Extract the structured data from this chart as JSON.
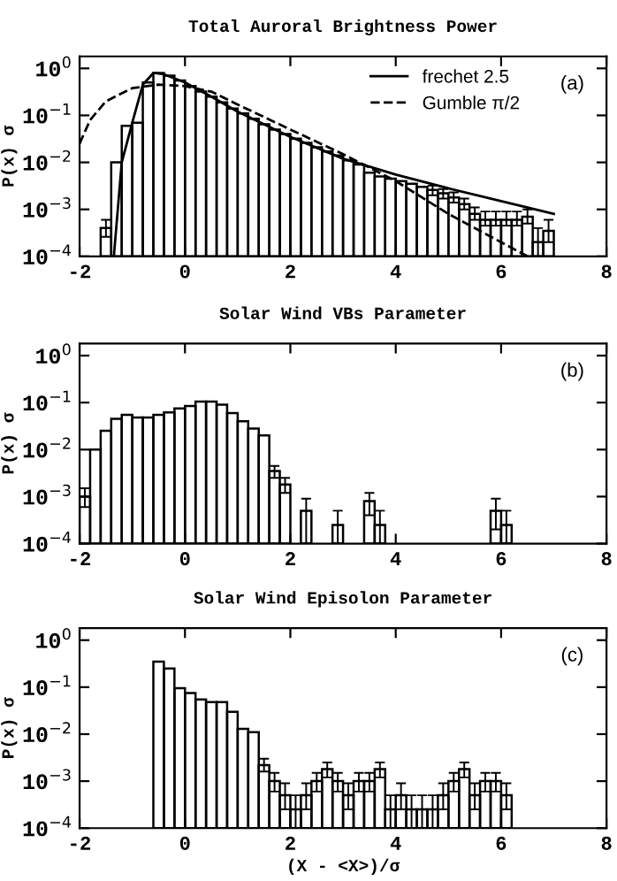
{
  "chart_data": [
    {
      "type": "histogram",
      "title": "Total Auroral Brightness Power",
      "ylabel": "P(x) σ",
      "annotations": [
        "(a)"
      ],
      "bins": [
        -1.6,
        -1.4,
        -1.2,
        -1.0,
        -0.8,
        -0.6,
        -0.4,
        -0.2,
        0.0,
        0.2,
        0.4,
        0.6,
        0.8,
        1.0,
        1.2,
        1.4,
        1.6,
        1.8,
        2.0,
        2.2,
        2.4,
        2.6,
        2.8,
        3.0,
        3.2,
        3.4,
        3.6,
        3.8,
        4.0,
        4.2,
        4.4,
        4.6,
        4.8,
        5.0,
        5.2,
        5.4,
        5.6,
        5.8,
        6.0,
        6.2,
        6.4,
        6.6,
        6.8,
        7.0
      ],
      "values": [
        0.0004,
        0.01,
        0.06,
        0.07,
        0.5,
        0.8,
        0.7,
        0.55,
        0.42,
        0.32,
        0.25,
        0.19,
        0.14,
        0.11,
        0.085,
        0.065,
        0.05,
        0.04,
        0.032,
        0.026,
        0.021,
        0.017,
        0.014,
        0.011,
        0.009,
        0.006,
        0.005,
        0.0045,
        0.004,
        0.0035,
        0.003,
        0.0026,
        0.0022,
        0.0018,
        0.0013,
        0.0008,
        0.0006,
        0.0006,
        0.0006,
        0.0006,
        0.0007,
        0.0002,
        0.00035
      ],
      "errors": [
        [
          0.00026,
          0.0006
        ],
        null,
        null,
        null,
        null,
        null,
        null,
        null,
        null,
        null,
        null,
        null,
        null,
        null,
        null,
        null,
        null,
        null,
        null,
        null,
        null,
        null,
        null,
        null,
        null,
        null,
        null,
        null,
        null,
        null,
        null,
        [
          0.002,
          0.0032
        ],
        [
          0.0017,
          0.0027
        ],
        [
          0.0014,
          0.0023
        ],
        [
          0.001,
          0.0017
        ],
        [
          0.0006,
          0.0011
        ],
        [
          0.00045,
          0.0009
        ],
        [
          0.00045,
          0.0009
        ],
        [
          0.00045,
          0.0009
        ],
        [
          0.00045,
          0.0009
        ],
        [
          0.0005,
          0.001
        ],
        [
          0.0001,
          0.0004
        ],
        [
          0.0002,
          0.0006
        ]
      ],
      "series": [
        {
          "name": "frechet 2.5",
          "type": "line",
          "line_style": "solid",
          "color": "#000000",
          "x": [
            -1.35,
            -1.2,
            -1.0,
            -0.8,
            -0.6,
            -0.4,
            0,
            0.5,
            1,
            2,
            3,
            4,
            5,
            6,
            7
          ],
          "values": [
            0.0001,
            0.01,
            0.07,
            0.45,
            0.8,
            0.75,
            0.5,
            0.25,
            0.12,
            0.035,
            0.012,
            0.0055,
            0.0028,
            0.0015,
            0.0008
          ]
        },
        {
          "name": "Gumble π/2",
          "type": "line",
          "line_style": "dashed",
          "color": "#000000",
          "x": [
            -2,
            -1.8,
            -1.5,
            -1.0,
            -0.5,
            0,
            0.5,
            1,
            2,
            3,
            4,
            5,
            6,
            6.5
          ],
          "values": [
            0.025,
            0.08,
            0.2,
            0.38,
            0.45,
            0.42,
            0.32,
            0.17,
            0.05,
            0.015,
            0.004,
            0.0008,
            0.0002,
            0.0001
          ]
        }
      ],
      "legend": "top right",
      "xlim": [
        -2,
        8
      ],
      "xticks": [
        -2,
        0,
        2,
        4,
        6,
        8
      ],
      "log": true,
      "ylim": [
        0.0001,
        1.8
      ],
      "yticks": [
        {
          "value": 0.0001,
          "label": "10$^{−4}$"
        },
        {
          "value": 0.001,
          "label": "10$^{−3}$"
        },
        {
          "value": 0.01,
          "label": "10$^{−2}$"
        },
        {
          "value": 0.1,
          "label": "10$^{−1}$"
        },
        {
          "value": 1,
          "label": "10$^{0}$"
        }
      ],
      "grid": false
    },
    {
      "type": "histogram",
      "title": "Solar Wind VBs Parameter",
      "ylabel": "P(x) σ",
      "annotations": [
        "(b)"
      ],
      "bins": [
        -2.0,
        -1.8,
        -1.6,
        -1.4,
        -1.2,
        -1.0,
        -0.8,
        -0.6,
        -0.4,
        -0.2,
        0.0,
        0.2,
        0.4,
        0.6,
        0.8,
        1.0,
        1.2,
        1.4,
        1.6,
        1.8,
        2.0,
        2.2,
        2.4,
        2.6,
        2.8,
        3.0,
        3.2,
        3.4,
        3.6,
        3.8,
        4.0,
        4.2,
        4.4,
        4.6,
        4.8,
        5.0,
        5.2,
        5.4,
        5.6,
        5.8,
        6.0,
        6.2
      ],
      "values": [
        0.001,
        0.01,
        0.025,
        0.045,
        0.055,
        0.048,
        0.048,
        0.055,
        0.062,
        0.075,
        0.085,
        0.105,
        0.105,
        0.09,
        0.06,
        0.04,
        0.028,
        0.02,
        0.0035,
        0.0018,
        null,
        0.0005,
        null,
        null,
        0.00025,
        null,
        null,
        0.0008,
        0.00025,
        null,
        null,
        null,
        null,
        null,
        null,
        null,
        null,
        null,
        null,
        0.0005,
        0.00025
      ],
      "errors": [
        [
          0.0006,
          0.0015
        ],
        null,
        null,
        null,
        null,
        null,
        null,
        null,
        null,
        null,
        null,
        null,
        null,
        null,
        null,
        null,
        null,
        null,
        [
          0.0025,
          0.0045
        ],
        [
          0.0012,
          0.0025
        ],
        null,
        [
          0.0001,
          0.0009
        ],
        null,
        null,
        [
          0.0001,
          0.0005
        ],
        null,
        null,
        [
          0.0004,
          0.0012
        ],
        [
          0.0001,
          0.0005
        ],
        null,
        null,
        null,
        null,
        null,
        null,
        null,
        null,
        null,
        null,
        [
          0.0002,
          0.0009
        ],
        [
          0.0001,
          0.0005
        ]
      ],
      "xlim": [
        -2,
        8
      ],
      "xticks": [
        -2,
        0,
        2,
        4,
        6,
        8
      ],
      "log": true,
      "ylim": [
        0.0001,
        1.8
      ],
      "yticks": [
        {
          "value": 0.0001,
          "label": "10$^{−4}$"
        },
        {
          "value": 0.001,
          "label": "10$^{−3}$"
        },
        {
          "value": 0.01,
          "label": "10$^{−2}$"
        },
        {
          "value": 0.1,
          "label": "10$^{−1}$"
        },
        {
          "value": 1,
          "label": "10$^{0}$"
        }
      ],
      "grid": false
    },
    {
      "type": "histogram",
      "title": "Solar Wind Episolon Parameter",
      "xlabel": "(X - <X>)/σ",
      "ylabel": "P(x) σ",
      "annotations": [
        "(c)"
      ],
      "bins": [
        -0.6,
        -0.4,
        -0.2,
        0.0,
        0.2,
        0.4,
        0.6,
        0.8,
        1.0,
        1.2,
        1.4,
        1.6,
        1.8,
        2.0,
        2.2,
        2.4,
        2.6,
        2.8,
        3.0,
        3.2,
        3.4,
        3.6,
        3.8,
        4.0,
        4.2,
        4.4,
        4.6,
        4.8,
        5.0,
        5.2,
        5.4,
        5.6,
        5.8,
        6.0,
        6.2
      ],
      "values": [
        0.35,
        0.25,
        0.095,
        0.075,
        0.055,
        0.048,
        0.048,
        0.03,
        0.013,
        0.011,
        0.0022,
        0.001,
        0.0005,
        0.00025,
        0.0005,
        0.001,
        0.0018,
        0.001,
        0.0005,
        0.001,
        0.001,
        0.0018,
        0.00025,
        0.0005,
        0.00025,
        0.00025,
        0.00025,
        0.0005,
        0.001,
        0.0018,
        0.0005,
        0.001,
        0.001,
        0.0005
      ],
      "errors": [
        null,
        null,
        null,
        null,
        null,
        null,
        null,
        null,
        null,
        null,
        [
          0.0016,
          0.003
        ],
        [
          0.0006,
          0.0015
        ],
        [
          0.00025,
          0.0009
        ],
        [
          0.0001,
          0.0005
        ],
        [
          0.00025,
          0.0009
        ],
        [
          0.0006,
          0.0015
        ],
        [
          0.0012,
          0.0025
        ],
        [
          0.0006,
          0.0015
        ],
        [
          0.00025,
          0.0009
        ],
        [
          0.0006,
          0.0015
        ],
        [
          0.0006,
          0.0015
        ],
        [
          0.0012,
          0.0025
        ],
        [
          0.0001,
          0.0005
        ],
        [
          0.00025,
          0.0009
        ],
        [
          0.0001,
          0.0005
        ],
        [
          0.0001,
          0.0005
        ],
        [
          0.0001,
          0.0005
        ],
        [
          0.00025,
          0.0009
        ],
        [
          0.0006,
          0.0015
        ],
        [
          0.0012,
          0.0025
        ],
        [
          0.00025,
          0.0009
        ],
        [
          0.0006,
          0.0015
        ],
        [
          0.0006,
          0.0015
        ],
        [
          0.00025,
          0.0009
        ]
      ],
      "xlim": [
        -2,
        8
      ],
      "xticks": [
        -2,
        0,
        2,
        4,
        6,
        8
      ],
      "log": true,
      "ylim": [
        0.0001,
        1.8
      ],
      "yticks": [
        {
          "value": 0.0001,
          "label": "10$^{−4}$"
        },
        {
          "value": 0.001,
          "label": "10$^{−3}$"
        },
        {
          "value": 0.01,
          "label": "10$^{−2}$"
        },
        {
          "value": 0.1,
          "label": "10$^{−1}$"
        },
        {
          "value": 1,
          "label": "10$^{0}$"
        }
      ],
      "grid": false
    }
  ]
}
